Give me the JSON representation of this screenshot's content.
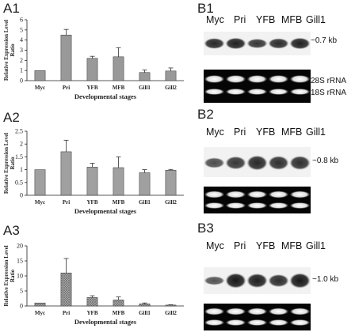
{
  "panels": {
    "A1": "A1",
    "A2": "A2",
    "A3": "A3",
    "B1": "B1",
    "B2": "B2",
    "B3": "B3"
  },
  "chart_data": [
    {
      "type": "bar",
      "id": "A1",
      "title": "",
      "categories": [
        "Myc",
        "Pri",
        "YFB",
        "MFB",
        "Gill1",
        "Gill2"
      ],
      "values": [
        1.0,
        4.5,
        2.2,
        2.35,
        0.8,
        0.95
      ],
      "errors": [
        0,
        0.55,
        0.2,
        0.9,
        0.25,
        0.3
      ],
      "ylim": [
        0,
        6
      ],
      "yticks": [
        0,
        1,
        2,
        3,
        4,
        5,
        6
      ],
      "ytick_labels": [
        "0",
        "1",
        "2",
        "3",
        "4",
        "5",
        "6"
      ],
      "ylabel": "Relative Expression Level Ratio",
      "xlabel": "Developmental stages",
      "bar_color": "#999999",
      "pattern": "solid",
      "grid": false
    },
    {
      "type": "bar",
      "id": "A2",
      "title": "",
      "categories": [
        "Myc",
        "Pri",
        "YFB",
        "MFB",
        "Gill1",
        "Gill2"
      ],
      "values": [
        1.0,
        1.7,
        1.1,
        1.08,
        0.88,
        0.98
      ],
      "errors": [
        0,
        0.45,
        0.15,
        0.42,
        0.12,
        0.03
      ],
      "ylim": [
        0,
        2.5
      ],
      "yticks": [
        0,
        0.5,
        1,
        1.5,
        2,
        2.5
      ],
      "ytick_labels": [
        "0",
        "0.5",
        "1",
        "1.5",
        "2",
        "2.5"
      ],
      "ylabel": "Relative Expression Level Ratio",
      "xlabel": "Developmental stages",
      "bar_color": "#a0a0a0",
      "pattern": "solid",
      "grid": false
    },
    {
      "type": "bar",
      "id": "A3",
      "title": "",
      "categories": [
        "Myc",
        "Pri",
        "YFB",
        "MFB",
        "Gill1",
        "Gill2"
      ],
      "values": [
        1.0,
        11.0,
        2.8,
        2.0,
        0.7,
        0.3
      ],
      "errors": [
        0,
        4.8,
        0.6,
        1.0,
        0.3,
        0.1
      ],
      "ylim": [
        0,
        20
      ],
      "yticks": [
        0,
        5,
        10,
        15,
        20
      ],
      "ytick_labels": [
        "0",
        "5",
        "10",
        "15",
        "20"
      ],
      "ylabel": "Relative Expression Level Ratio",
      "xlabel": "Developmental stages",
      "bar_color": "#8a8a8a",
      "pattern": "crosshatch",
      "grid": false
    }
  ],
  "blots": {
    "B1": {
      "lanes": [
        "Myc",
        "Pri",
        "YFB",
        "MFB",
        "Gill1"
      ],
      "band_size": "~0.7 kb",
      "rrna_28s": "28S rRNA",
      "rrna_18s": "18S rRNA",
      "band_intensity": [
        0.85,
        0.9,
        0.75,
        0.82,
        0.9
      ]
    },
    "B2": {
      "lanes": [
        "Myc",
        "Pri",
        "YFB",
        "MFB",
        "Gill1"
      ],
      "band_size": "~0.8 kb",
      "band_intensity": [
        0.6,
        0.75,
        0.85,
        0.8,
        0.8
      ]
    },
    "B3": {
      "lanes": [
        "Myc",
        "Pri",
        "YFB",
        "MFB",
        "Gill1"
      ],
      "band_size": "~1.0 kb",
      "band_intensity": [
        0.55,
        0.95,
        0.9,
        0.8,
        0.95
      ]
    }
  }
}
